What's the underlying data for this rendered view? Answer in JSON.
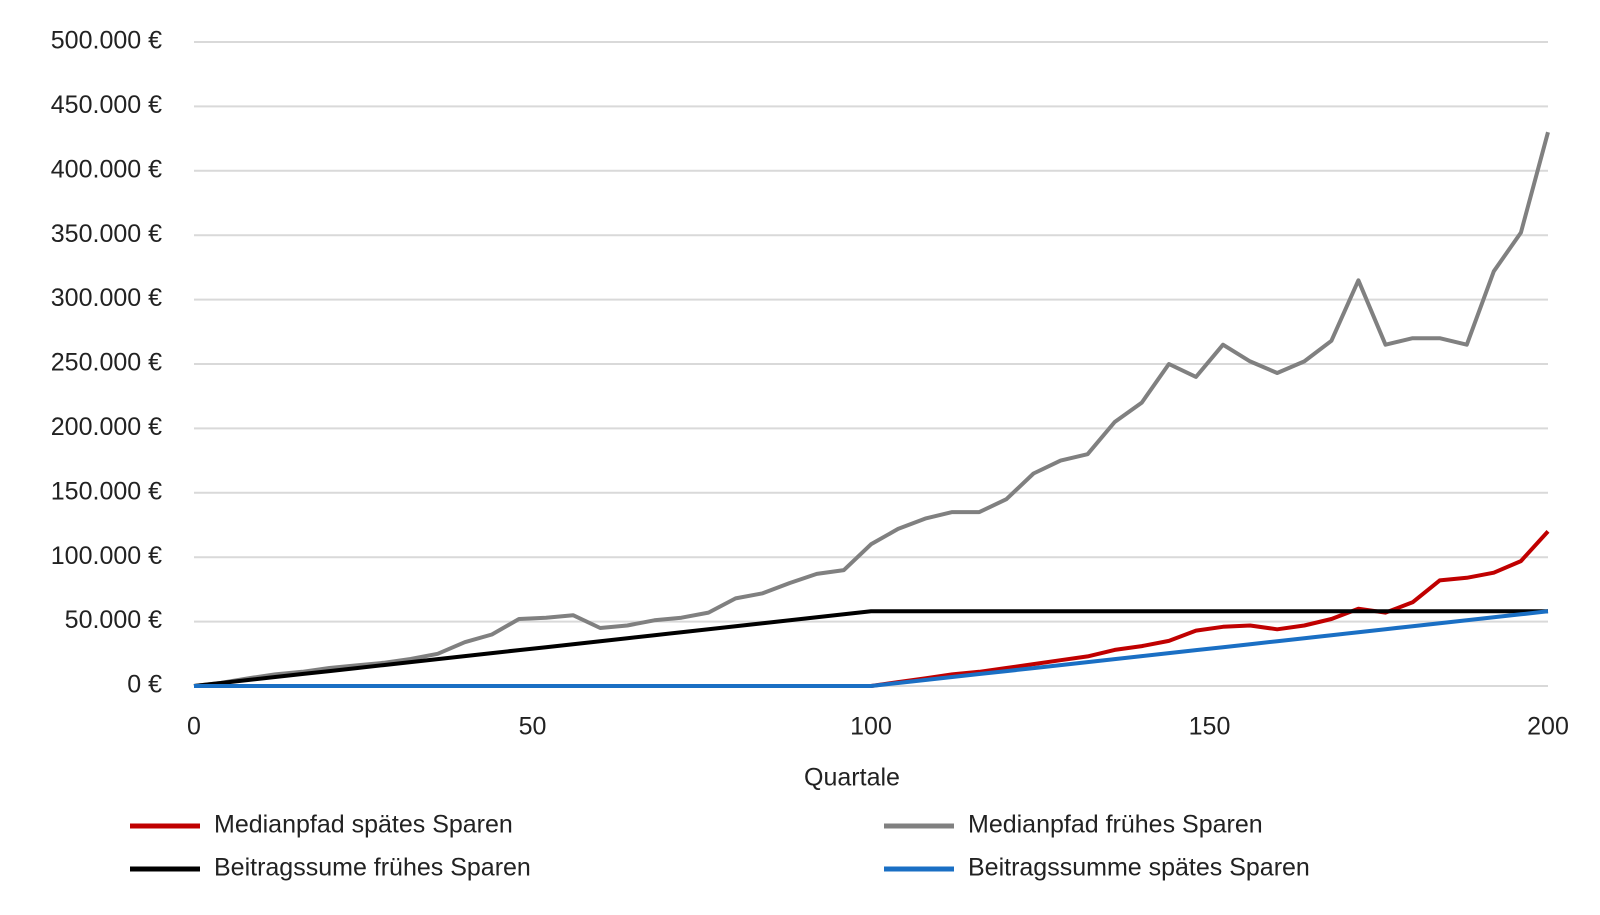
{
  "chart_data": {
    "type": "line",
    "x_label": "Quartale",
    "x": [
      0,
      4,
      8,
      12,
      16,
      20,
      24,
      28,
      32,
      36,
      40,
      44,
      48,
      52,
      56,
      60,
      64,
      68,
      72,
      76,
      80,
      84,
      88,
      92,
      96,
      100,
      104,
      108,
      112,
      116,
      120,
      124,
      128,
      132,
      136,
      140,
      144,
      148,
      152,
      156,
      160,
      164,
      168,
      172,
      176,
      180,
      184,
      188,
      192,
      196,
      200
    ],
    "xlim": [
      0,
      200
    ],
    "xticks": [
      0,
      50,
      100,
      150,
      200
    ],
    "ylim": [
      0,
      500000
    ],
    "yticks": [
      {
        "value": 0,
        "label": "0 €"
      },
      {
        "value": 50000,
        "label": "50.000 €"
      },
      {
        "value": 100000,
        "label": "100.000 €"
      },
      {
        "value": 150000,
        "label": "150.000 €"
      },
      {
        "value": 200000,
        "label": "200.000 €"
      },
      {
        "value": 250000,
        "label": "250.000 €"
      },
      {
        "value": 300000,
        "label": "300.000 €"
      },
      {
        "value": 350000,
        "label": "350.000 €"
      },
      {
        "value": 400000,
        "label": "400.000 €"
      },
      {
        "value": 450000,
        "label": "450.000 €"
      },
      {
        "value": 500000,
        "label": "500.000 €"
      }
    ],
    "grid": true,
    "legend": "bottom",
    "series": [
      {
        "name": "Medianpfad spätes Sparen",
        "color": "#c00000",
        "values": [
          0,
          0,
          0,
          0,
          0,
          0,
          0,
          0,
          0,
          0,
          0,
          0,
          0,
          0,
          0,
          0,
          0,
          0,
          0,
          0,
          0,
          0,
          0,
          0,
          0,
          0,
          3000,
          6000,
          9000,
          11000,
          14000,
          17000,
          20000,
          23000,
          28000,
          31000,
          35000,
          43000,
          46000,
          47000,
          44000,
          47000,
          52000,
          60000,
          57000,
          65000,
          82000,
          84000,
          88000,
          97000,
          120000
        ]
      },
      {
        "name": "Medianpfad frühes Sparen",
        "color": "#808080",
        "values": [
          0,
          2500,
          6000,
          9000,
          11000,
          14000,
          16000,
          18000,
          21000,
          25000,
          34000,
          40000,
          52000,
          53000,
          55000,
          45000,
          47000,
          51000,
          53000,
          57000,
          68000,
          72000,
          80000,
          87000,
          90000,
          110000,
          122000,
          130000,
          135000,
          135000,
          145000,
          165000,
          175000,
          180000,
          205000,
          220000,
          250000,
          240000,
          265000,
          252000,
          243000,
          252000,
          268000,
          315000,
          265000,
          270000,
          270000,
          265000,
          322000,
          352000,
          430000
        ]
      },
      {
        "name": "Beitragssume frühes Sparen",
        "color": "#000000",
        "values": [
          0,
          2320,
          4640,
          6960,
          9280,
          11600,
          13920,
          16240,
          18560,
          20880,
          23200,
          25520,
          27840,
          30160,
          32480,
          34800,
          37120,
          39440,
          41760,
          44080,
          46400,
          48720,
          51040,
          53360,
          55680,
          58000,
          58000,
          58000,
          58000,
          58000,
          58000,
          58000,
          58000,
          58000,
          58000,
          58000,
          58000,
          58000,
          58000,
          58000,
          58000,
          58000,
          58000,
          58000,
          58000,
          58000,
          58000,
          58000,
          58000,
          58000,
          58000
        ]
      },
      {
        "name": "Beitragssumme spätes Sparen",
        "color": "#1a6fc4",
        "values": [
          0,
          0,
          0,
          0,
          0,
          0,
          0,
          0,
          0,
          0,
          0,
          0,
          0,
          0,
          0,
          0,
          0,
          0,
          0,
          0,
          0,
          0,
          0,
          0,
          0,
          0,
          2320,
          4640,
          6960,
          9280,
          11600,
          13920,
          16240,
          18560,
          20880,
          23200,
          25520,
          27840,
          30160,
          32480,
          34800,
          37120,
          39440,
          41760,
          44080,
          46400,
          48720,
          51040,
          53360,
          55680,
          58000
        ]
      }
    ]
  }
}
